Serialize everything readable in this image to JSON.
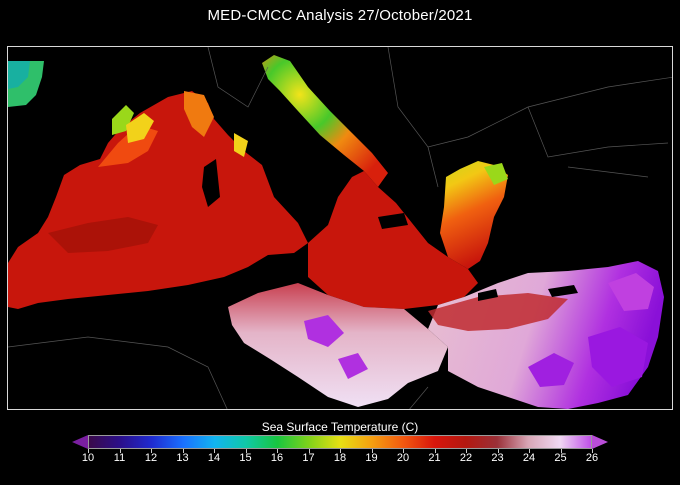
{
  "title": "MED-CMCC  Analysis  27/October/2021",
  "colorbar": {
    "label": "Sea Surface Temperature (C)",
    "ticks": [
      "10",
      "11",
      "12",
      "13",
      "14",
      "15",
      "16",
      "17",
      "18",
      "19",
      "20",
      "21",
      "22",
      "23",
      "24",
      "25",
      "26"
    ],
    "min": 10,
    "max": 26,
    "colors": [
      "#3a0a4a",
      "#2b0f8a",
      "#1f2bd0",
      "#1a70ff",
      "#12b4f0",
      "#10c8a8",
      "#18c640",
      "#7fd21a",
      "#e6e014",
      "#f5a010",
      "#f25a10",
      "#d8160c",
      "#b41810",
      "#9a3038",
      "#d8a6b6",
      "#f0d8f2",
      "#c050e8"
    ]
  },
  "map": {
    "region": "Mediterranean Sea",
    "colors": {
      "land": "#000000",
      "coast": "#6a6a6a",
      "warm_red": "#c8160c",
      "deep_red": "#a81208",
      "orange": "#f04a10",
      "yellow": "#f2e41a",
      "green": "#48c82a",
      "pink": "#e6b8c8",
      "violet": "#a020e0"
    }
  }
}
